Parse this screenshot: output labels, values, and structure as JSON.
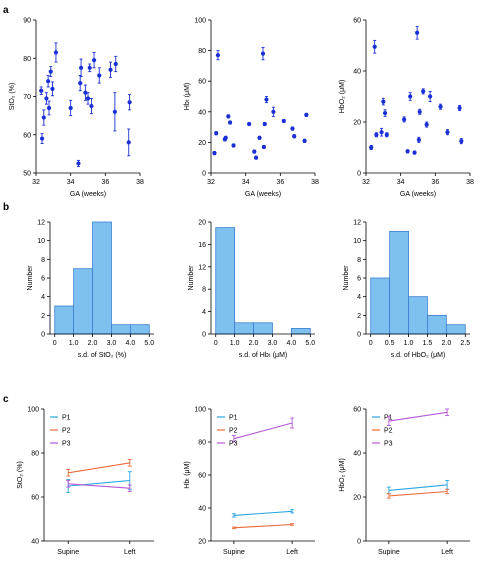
{
  "panel_labels": [
    "a",
    "b",
    "c"
  ],
  "colors": {
    "scatter": "#1a2fd6",
    "hist_fill": "#7ec0ef",
    "hist_edge": "#3a7fd0",
    "P1": "#2aa6e0",
    "P2": "#ee6a3a",
    "P3": "#b559d6"
  },
  "chart_data": [
    {
      "id": "a1",
      "type": "scatter",
      "panel": "a",
      "xlabel": "GA (weeks)",
      "ylabel": "StO₂ (%)",
      "xlim": [
        32,
        38
      ],
      "ylim": [
        50,
        90
      ],
      "xticks": [
        32,
        34,
        36,
        38
      ],
      "yticks": [
        50,
        60,
        70,
        80,
        90
      ],
      "points": [
        {
          "x": 32.3,
          "y": 71.5,
          "err": 1.0
        },
        {
          "x": 32.35,
          "y": 59,
          "err": 1.3
        },
        {
          "x": 32.45,
          "y": 64.5,
          "err": 2.0
        },
        {
          "x": 32.6,
          "y": 69.5,
          "err": 1.5
        },
        {
          "x": 32.7,
          "y": 74,
          "err": 1.5
        },
        {
          "x": 32.75,
          "y": 67,
          "err": 1.8
        },
        {
          "x": 32.85,
          "y": 76.5,
          "err": 1.3
        },
        {
          "x": 32.95,
          "y": 72,
          "err": 1.8
        },
        {
          "x": 33.15,
          "y": 81.5,
          "err": 2.5
        },
        {
          "x": 34.0,
          "y": 67,
          "err": 2.0
        },
        {
          "x": 34.45,
          "y": 52.5,
          "err": 0.8
        },
        {
          "x": 34.55,
          "y": 73.5,
          "err": 2.0
        },
        {
          "x": 34.6,
          "y": 77.5,
          "err": 2.3
        },
        {
          "x": 34.85,
          "y": 71,
          "err": 2.0
        },
        {
          "x": 35.0,
          "y": 69.5,
          "err": 1.5
        },
        {
          "x": 35.1,
          "y": 77.5,
          "err": 1.0
        },
        {
          "x": 35.2,
          "y": 67.5,
          "err": 2.0
        },
        {
          "x": 35.35,
          "y": 79.5,
          "err": 2.0
        },
        {
          "x": 35.65,
          "y": 75.5,
          "err": 2.0
        },
        {
          "x": 36.3,
          "y": 77,
          "err": 2.0
        },
        {
          "x": 36.55,
          "y": 66,
          "err": 5.0
        },
        {
          "x": 36.6,
          "y": 78.5,
          "err": 2.0
        },
        {
          "x": 37.35,
          "y": 58,
          "err": 3.5
        },
        {
          "x": 37.4,
          "y": 68.5,
          "err": 2.0
        }
      ]
    },
    {
      "id": "a2",
      "type": "scatter",
      "panel": "a",
      "xlabel": "GA (weeks)",
      "ylabel": "Hbₜ (μM)",
      "xlim": [
        32,
        38
      ],
      "ylim": [
        0,
        100
      ],
      "xticks": [
        32,
        34,
        36,
        38
      ],
      "yticks": [
        0,
        20,
        40,
        60,
        80,
        100
      ],
      "points": [
        {
          "x": 32.2,
          "y": 13,
          "err": 1.0
        },
        {
          "x": 32.3,
          "y": 26,
          "err": 1.0
        },
        {
          "x": 32.4,
          "y": 77,
          "err": 3.0
        },
        {
          "x": 32.8,
          "y": 22,
          "err": 1.0
        },
        {
          "x": 32.85,
          "y": 23,
          "err": 1.0
        },
        {
          "x": 33.0,
          "y": 37,
          "err": 1.0
        },
        {
          "x": 33.1,
          "y": 33,
          "err": 1.0
        },
        {
          "x": 33.3,
          "y": 18,
          "err": 1.0
        },
        {
          "x": 34.2,
          "y": 32,
          "err": 1.0
        },
        {
          "x": 34.5,
          "y": 14,
          "err": 1.0
        },
        {
          "x": 34.6,
          "y": 10,
          "err": 1.0
        },
        {
          "x": 34.8,
          "y": 23,
          "err": 1.0
        },
        {
          "x": 35.0,
          "y": 78,
          "err": 4.0
        },
        {
          "x": 35.05,
          "y": 17,
          "err": 1.0
        },
        {
          "x": 35.1,
          "y": 32,
          "err": 1.0
        },
        {
          "x": 35.2,
          "y": 48,
          "err": 2.0
        },
        {
          "x": 35.6,
          "y": 40,
          "err": 3.0
        },
        {
          "x": 36.2,
          "y": 34,
          "err": 1.0
        },
        {
          "x": 36.7,
          "y": 29,
          "err": 1.0
        },
        {
          "x": 36.8,
          "y": 24,
          "err": 1.0
        },
        {
          "x": 37.4,
          "y": 21,
          "err": 1.0
        },
        {
          "x": 37.5,
          "y": 38,
          "err": 1.0
        }
      ]
    },
    {
      "id": "a3",
      "type": "scatter",
      "panel": "a",
      "xlabel": "GA (weeks)",
      "ylabel": "HbO₂ (μM)",
      "xlim": [
        32,
        38
      ],
      "ylim": [
        0,
        60
      ],
      "xticks": [
        32,
        34,
        36,
        38
      ],
      "yticks": [
        0,
        20,
        40,
        60
      ],
      "points": [
        {
          "x": 32.3,
          "y": 10,
          "err": 0.8
        },
        {
          "x": 32.5,
          "y": 49.5,
          "err": 2.5
        },
        {
          "x": 32.6,
          "y": 15,
          "err": 0.8
        },
        {
          "x": 32.9,
          "y": 16,
          "err": 1.5
        },
        {
          "x": 33.0,
          "y": 28,
          "err": 1.3
        },
        {
          "x": 33.1,
          "y": 23.5,
          "err": 1.3
        },
        {
          "x": 33.2,
          "y": 15,
          "err": 0.8
        },
        {
          "x": 34.2,
          "y": 21,
          "err": 1.0
        },
        {
          "x": 34.4,
          "y": 8.5,
          "err": 0.6
        },
        {
          "x": 34.55,
          "y": 30,
          "err": 1.5
        },
        {
          "x": 34.8,
          "y": 8,
          "err": 0.6
        },
        {
          "x": 34.95,
          "y": 55,
          "err": 2.5
        },
        {
          "x": 35.05,
          "y": 13,
          "err": 1.0
        },
        {
          "x": 35.1,
          "y": 24,
          "err": 1.0
        },
        {
          "x": 35.3,
          "y": 32,
          "err": 1.0
        },
        {
          "x": 35.5,
          "y": 19,
          "err": 1.0
        },
        {
          "x": 35.7,
          "y": 30,
          "err": 2.0
        },
        {
          "x": 36.3,
          "y": 26,
          "err": 1.0
        },
        {
          "x": 36.7,
          "y": 16,
          "err": 1.0
        },
        {
          "x": 37.4,
          "y": 25.5,
          "err": 1.0
        },
        {
          "x": 37.5,
          "y": 12.5,
          "err": 1.0
        }
      ]
    },
    {
      "id": "b1",
      "type": "bar",
      "panel": "b",
      "xlabel": "s.d. of StO₂ (%)",
      "ylabel": "Number",
      "xlim": [
        -0.25,
        5.25
      ],
      "ylim": [
        0,
        12
      ],
      "xticks": [
        0,
        1,
        2,
        3,
        4,
        5
      ],
      "xtick_labels": [
        "0",
        "1.0",
        "2.0",
        "3.0",
        "4.0",
        "5.0"
      ],
      "yticks": [
        0,
        2,
        4,
        6,
        8,
        10,
        12
      ],
      "bin_edges": [
        0,
        1,
        2,
        3,
        4,
        5
      ],
      "values": [
        3,
        7,
        12,
        1,
        1
      ]
    },
    {
      "id": "b2",
      "type": "bar",
      "panel": "b",
      "xlabel": "s.d. of Hbₜ (μM)",
      "ylabel": "Number",
      "xlim": [
        -0.25,
        5.25
      ],
      "ylim": [
        0,
        20
      ],
      "xticks": [
        0,
        1,
        2,
        3,
        4,
        5
      ],
      "xtick_labels": [
        "0",
        "1.0",
        "2.0",
        "3.0",
        "4.0",
        "5.0"
      ],
      "yticks": [
        0,
        4,
        8,
        12,
        16,
        20
      ],
      "bin_edges": [
        0,
        1,
        2,
        3,
        4,
        5
      ],
      "values": [
        19,
        2,
        2,
        0,
        1
      ]
    },
    {
      "id": "b3",
      "type": "bar",
      "panel": "b",
      "xlabel": "s.d. of HbO₂ (μM)",
      "ylabel": "Number",
      "xlim": [
        -0.125,
        2.625
      ],
      "ylim": [
        0,
        12
      ],
      "xticks": [
        0,
        0.5,
        1.0,
        1.5,
        2.0,
        2.5
      ],
      "xtick_labels": [
        "0",
        "0.5",
        "1.0",
        "1.5",
        "2.0",
        "2.5"
      ],
      "yticks": [
        0,
        2,
        4,
        6,
        8,
        10,
        12
      ],
      "bin_edges": [
        0,
        0.5,
        1.0,
        1.5,
        2.0,
        2.5
      ],
      "values": [
        6,
        11,
        4,
        2,
        1
      ]
    },
    {
      "id": "c1",
      "type": "line",
      "panel": "c",
      "ylabel": "StO₂ (%)",
      "categories": [
        "Supine",
        "Left"
      ],
      "ylim": [
        40,
        100
      ],
      "yticks": [
        40,
        60,
        80,
        100
      ],
      "legend": "top-left",
      "series": [
        {
          "name": "P1",
          "values": [
            65,
            67.5
          ],
          "err": [
            3,
            4
          ]
        },
        {
          "name": "P2",
          "values": [
            71,
            75.5
          ],
          "err": [
            1.5,
            1.5
          ]
        },
        {
          "name": "P3",
          "values": [
            66,
            64
          ],
          "err": [
            1.5,
            1.5
          ]
        }
      ]
    },
    {
      "id": "c2",
      "type": "line",
      "panel": "c",
      "ylabel": "Hbₜ (μM)",
      "categories": [
        "Supine",
        "Left"
      ],
      "ylim": [
        20,
        100
      ],
      "yticks": [
        20,
        40,
        60,
        80,
        100
      ],
      "legend": "top-left",
      "series": [
        {
          "name": "P1",
          "values": [
            35.5,
            38
          ],
          "err": [
            1,
            1
          ]
        },
        {
          "name": "P2",
          "values": [
            28,
            30
          ],
          "err": [
            0.5,
            0.5
          ]
        },
        {
          "name": "P3",
          "values": [
            82,
            91.5
          ],
          "err": [
            2,
            3
          ]
        }
      ]
    },
    {
      "id": "c3",
      "type": "line",
      "panel": "c",
      "ylabel": "HbO₂ (μM)",
      "categories": [
        "Supine",
        "Left"
      ],
      "ylim": [
        0,
        60
      ],
      "yticks": [
        0,
        20,
        40,
        60
      ],
      "legend": "top-left",
      "series": [
        {
          "name": "P1",
          "values": [
            23,
            25.5
          ],
          "err": [
            1.5,
            2
          ]
        },
        {
          "name": "P2",
          "values": [
            20.5,
            22.5
          ],
          "err": [
            1,
            1
          ]
        },
        {
          "name": "P3",
          "values": [
            54.5,
            58.5
          ],
          "err": [
            2,
            1.5
          ]
        }
      ]
    }
  ]
}
